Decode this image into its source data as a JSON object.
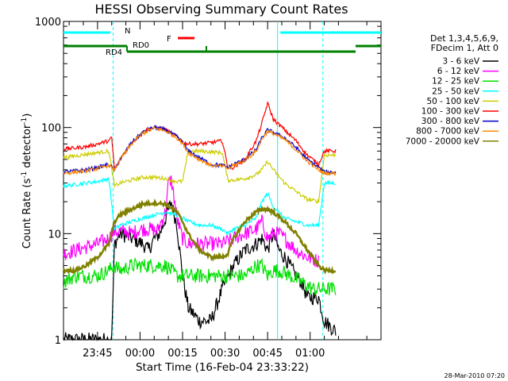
{
  "chart_data": {
    "type": "line",
    "title": "HESSI Observing Summary Count Rates",
    "xlabel": "Start Time (16-Feb-04 23:33:22)",
    "ylabel": "Count Rate (s-1 detector-1)",
    "y_scale": "log",
    "ylim": [
      1,
      1000
    ],
    "xlim_minutes": [
      -12,
      100
    ],
    "x_ticks": [
      {
        "label": "23:45",
        "t": 0
      },
      {
        "label": "00:00",
        "t": 15
      },
      {
        "label": "00:15",
        "t": 30
      },
      {
        "label": "00:30",
        "t": 45
      },
      {
        "label": "00:45",
        "t": 60
      },
      {
        "label": "01:00",
        "t": 75
      }
    ],
    "y_ticks": [
      {
        "label": "1",
        "v": 1
      },
      {
        "label": "10",
        "v": 10
      },
      {
        "label": "100",
        "v": 100
      },
      {
        "label": "1000",
        "v": 1000
      }
    ],
    "legend_header": [
      "Det 1,3,4,5,6,9,",
      "FDecim 1, Att 0"
    ],
    "series": [
      {
        "name": "3 - 6 keV",
        "color": "#000000",
        "points": [
          [
            -12,
            1
          ],
          [
            5,
            1
          ],
          [
            6,
            8
          ],
          [
            8,
            10
          ],
          [
            12,
            9
          ],
          [
            16,
            8
          ],
          [
            18,
            7
          ],
          [
            20,
            9
          ],
          [
            22,
            10
          ],
          [
            24,
            14
          ],
          [
            26,
            20
          ],
          [
            28,
            12
          ],
          [
            30,
            4
          ],
          [
            32,
            2
          ],
          [
            36,
            1.5
          ],
          [
            40,
            1.5
          ],
          [
            44,
            3
          ],
          [
            48,
            5
          ],
          [
            52,
            7
          ],
          [
            56,
            8
          ],
          [
            58,
            9
          ],
          [
            60,
            7
          ],
          [
            62,
            10
          ],
          [
            64,
            7
          ],
          [
            66,
            6
          ],
          [
            70,
            4
          ],
          [
            72,
            3.5
          ],
          [
            74,
            2.5
          ],
          [
            78,
            2.5
          ],
          [
            80,
            1.5
          ],
          [
            84,
            1.2
          ]
        ]
      },
      {
        "name": "6 - 12 keV",
        "color": "#ff00ff",
        "points": [
          [
            -12,
            6.5
          ],
          [
            0,
            8
          ],
          [
            4,
            9
          ],
          [
            6,
            10.5
          ],
          [
            10,
            10.5
          ],
          [
            12,
            10
          ],
          [
            15,
            11
          ],
          [
            17,
            11
          ],
          [
            19,
            11
          ],
          [
            21,
            10.5
          ],
          [
            24,
            16
          ],
          [
            25,
            30
          ],
          [
            26,
            32
          ],
          [
            27,
            22
          ],
          [
            28,
            14
          ],
          [
            30,
            9
          ],
          [
            32,
            8
          ],
          [
            36,
            8
          ],
          [
            40,
            8
          ],
          [
            44,
            8
          ],
          [
            48,
            9
          ],
          [
            52,
            10
          ],
          [
            56,
            11
          ],
          [
            58,
            13
          ],
          [
            60,
            9
          ],
          [
            62,
            10
          ],
          [
            64,
            10
          ],
          [
            66,
            9
          ],
          [
            70,
            7
          ],
          [
            74,
            6
          ],
          [
            78,
            5.5
          ]
        ]
      },
      {
        "name": "12 - 25 keV",
        "color": "#00e000",
        "points": [
          [
            -12,
            3.5
          ],
          [
            -8,
            4
          ],
          [
            -4,
            4
          ],
          [
            0,
            4
          ],
          [
            4,
            4.5
          ],
          [
            6,
            5
          ],
          [
            8,
            4.5
          ],
          [
            12,
            5
          ],
          [
            16,
            5
          ],
          [
            20,
            5
          ],
          [
            24,
            5
          ],
          [
            28,
            4
          ],
          [
            30,
            4
          ],
          [
            32,
            4
          ],
          [
            36,
            4
          ],
          [
            40,
            4
          ],
          [
            44,
            4
          ],
          [
            48,
            4
          ],
          [
            52,
            4
          ],
          [
            56,
            5
          ],
          [
            58,
            5
          ],
          [
            60,
            4
          ],
          [
            62,
            4.5
          ],
          [
            64,
            4.5
          ],
          [
            68,
            4
          ],
          [
            72,
            3.5
          ],
          [
            76,
            3
          ],
          [
            80,
            3
          ],
          [
            84,
            3
          ]
        ]
      },
      {
        "name": "25 - 50 keV",
        "color": "#00ffff",
        "points": [
          [
            -12,
            28
          ],
          [
            -8,
            29
          ],
          [
            -4,
            30
          ],
          [
            0,
            31
          ],
          [
            4,
            33
          ],
          [
            6,
            11
          ],
          [
            8,
            12
          ],
          [
            12,
            13
          ],
          [
            16,
            14
          ],
          [
            20,
            15
          ],
          [
            24,
            16
          ],
          [
            28,
            15
          ],
          [
            30,
            14
          ],
          [
            32,
            13
          ],
          [
            36,
            12
          ],
          [
            40,
            12
          ],
          [
            44,
            11
          ],
          [
            46,
            10
          ],
          [
            48,
            11
          ],
          [
            52,
            12
          ],
          [
            56,
            14
          ],
          [
            58,
            20
          ],
          [
            60,
            24
          ],
          [
            62,
            18
          ],
          [
            66,
            14
          ],
          [
            70,
            13
          ],
          [
            74,
            12
          ],
          [
            78,
            12
          ],
          [
            80,
            30
          ],
          [
            84,
            30
          ]
        ]
      },
      {
        "name": "50 - 100 keV",
        "color": "#cccc00",
        "points": [
          [
            -12,
            52
          ],
          [
            -8,
            54
          ],
          [
            -4,
            56
          ],
          [
            0,
            58
          ],
          [
            4,
            60
          ],
          [
            6,
            28
          ],
          [
            8,
            30
          ],
          [
            12,
            32
          ],
          [
            16,
            34
          ],
          [
            20,
            34
          ],
          [
            24,
            33
          ],
          [
            28,
            31
          ],
          [
            30,
            31
          ],
          [
            32,
            60
          ],
          [
            36,
            60
          ],
          [
            40,
            59
          ],
          [
            44,
            58
          ],
          [
            46,
            32
          ],
          [
            48,
            32
          ],
          [
            52,
            33
          ],
          [
            56,
            36
          ],
          [
            58,
            40
          ],
          [
            60,
            48
          ],
          [
            62,
            40
          ],
          [
            66,
            30
          ],
          [
            70,
            25
          ],
          [
            74,
            21
          ],
          [
            78,
            20
          ],
          [
            80,
            55
          ],
          [
            84,
            55
          ]
        ]
      },
      {
        "name": "100 - 300 keV",
        "color": "#ff0000",
        "points": [
          [
            -12,
            63
          ],
          [
            -8,
            64
          ],
          [
            -4,
            66
          ],
          [
            0,
            70
          ],
          [
            4,
            75
          ],
          [
            5,
            80
          ],
          [
            6,
            40
          ],
          [
            8,
            50
          ],
          [
            12,
            72
          ],
          [
            16,
            90
          ],
          [
            18,
            96
          ],
          [
            20,
            100
          ],
          [
            22,
            98
          ],
          [
            24,
            95
          ],
          [
            28,
            82
          ],
          [
            30,
            73
          ],
          [
            32,
            70
          ],
          [
            36,
            70
          ],
          [
            40,
            72
          ],
          [
            44,
            75
          ],
          [
            46,
            42
          ],
          [
            48,
            42
          ],
          [
            52,
            50
          ],
          [
            56,
            75
          ],
          [
            58,
            110
          ],
          [
            60,
            170
          ],
          [
            62,
            120
          ],
          [
            66,
            95
          ],
          [
            70,
            75
          ],
          [
            74,
            55
          ],
          [
            78,
            45
          ],
          [
            80,
            60
          ],
          [
            84,
            60
          ]
        ]
      },
      {
        "name": "300 - 800 keV",
        "color": "#0000cc",
        "points": [
          [
            -12,
            38
          ],
          [
            -8,
            39
          ],
          [
            -4,
            40
          ],
          [
            0,
            42
          ],
          [
            4,
            45
          ],
          [
            6,
            40
          ],
          [
            8,
            50
          ],
          [
            12,
            72
          ],
          [
            16,
            90
          ],
          [
            18,
            96
          ],
          [
            20,
            100
          ],
          [
            22,
            98
          ],
          [
            24,
            95
          ],
          [
            28,
            82
          ],
          [
            30,
            73
          ],
          [
            32,
            60
          ],
          [
            36,
            52
          ],
          [
            40,
            45
          ],
          [
            44,
            44
          ],
          [
            46,
            42
          ],
          [
            48,
            45
          ],
          [
            52,
            50
          ],
          [
            56,
            62
          ],
          [
            58,
            80
          ],
          [
            60,
            95
          ],
          [
            62,
            90
          ],
          [
            66,
            80
          ],
          [
            70,
            65
          ],
          [
            74,
            50
          ],
          [
            78,
            42
          ],
          [
            80,
            38
          ],
          [
            84,
            38
          ]
        ]
      },
      {
        "name": "800 - 7000 keV",
        "color": "#ff8800",
        "points": [
          [
            -12,
            37
          ],
          [
            -8,
            38
          ],
          [
            -4,
            39
          ],
          [
            0,
            41
          ],
          [
            4,
            44
          ],
          [
            6,
            40
          ],
          [
            8,
            50
          ],
          [
            12,
            70
          ],
          [
            16,
            88
          ],
          [
            18,
            94
          ],
          [
            20,
            98
          ],
          [
            22,
            96
          ],
          [
            24,
            93
          ],
          [
            28,
            80
          ],
          [
            30,
            71
          ],
          [
            32,
            58
          ],
          [
            36,
            50
          ],
          [
            40,
            44
          ],
          [
            44,
            43
          ],
          [
            46,
            41
          ],
          [
            48,
            44
          ],
          [
            52,
            49
          ],
          [
            56,
            60
          ],
          [
            58,
            78
          ],
          [
            60,
            92
          ],
          [
            62,
            88
          ],
          [
            66,
            77
          ],
          [
            70,
            62
          ],
          [
            74,
            48
          ],
          [
            78,
            40
          ],
          [
            80,
            37
          ],
          [
            84,
            37
          ]
        ]
      },
      {
        "name": "7000 - 20000 keV",
        "color": "#808000",
        "points": [
          [
            -12,
            4.5
          ],
          [
            -8,
            4.5
          ],
          [
            -4,
            5
          ],
          [
            0,
            6
          ],
          [
            4,
            8
          ],
          [
            6,
            13
          ],
          [
            8,
            15
          ],
          [
            12,
            17
          ],
          [
            16,
            19
          ],
          [
            20,
            19.5
          ],
          [
            24,
            19
          ],
          [
            28,
            16
          ],
          [
            30,
            13
          ],
          [
            32,
            10
          ],
          [
            36,
            7
          ],
          [
            40,
            6
          ],
          [
            44,
            6
          ],
          [
            46,
            6.5
          ],
          [
            48,
            9
          ],
          [
            52,
            13
          ],
          [
            56,
            16
          ],
          [
            58,
            17
          ],
          [
            60,
            17
          ],
          [
            62,
            16
          ],
          [
            66,
            13
          ],
          [
            70,
            10
          ],
          [
            74,
            7
          ],
          [
            78,
            5
          ],
          [
            80,
            4.5
          ],
          [
            84,
            4.5
          ]
        ]
      }
    ],
    "annotations": {
      "attenuator_labels": [
        "N",
        "F"
      ],
      "decimation_labels": [
        "RD0",
        "RD4"
      ],
      "timestamp": "28-Mar-2010 07:20"
    }
  },
  "colors": {
    "cyan": "#00ffff",
    "green": "#008000",
    "red": "#ff0000"
  }
}
